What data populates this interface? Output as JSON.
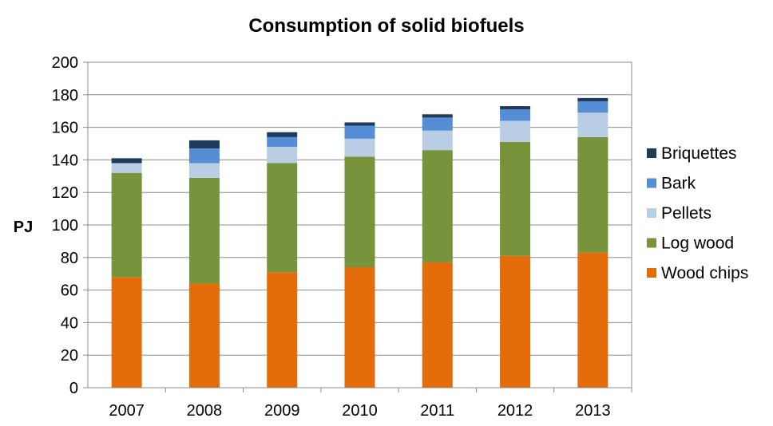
{
  "chart_data": {
    "type": "bar",
    "stacked": true,
    "title": "Consumption of solid biofuels",
    "xlabel": "",
    "ylabel": "PJ",
    "ylim": [
      0,
      200
    ],
    "yticks": [
      0,
      20,
      40,
      60,
      80,
      100,
      120,
      140,
      160,
      180,
      200
    ],
    "grid": true,
    "legend_position": "right",
    "categories": [
      "2007",
      "2008",
      "2009",
      "2010",
      "2011",
      "2012",
      "2013"
    ],
    "series": [
      {
        "name": "Wood chips",
        "color": "#E46C0A",
        "values": [
          68,
          64,
          71,
          74,
          77,
          81,
          83
        ]
      },
      {
        "name": "Log wood",
        "color": "#77933C",
        "values": [
          64,
          65,
          67,
          68,
          69,
          70,
          71
        ]
      },
      {
        "name": "Pellets",
        "color": "#B9CDE5",
        "values": [
          6,
          9,
          10,
          11,
          12,
          13,
          15
        ]
      },
      {
        "name": "Bark",
        "color": "#558ED5",
        "values": [
          0,
          9,
          6,
          8,
          8,
          7,
          7
        ]
      },
      {
        "name": "Briquettes",
        "color": "#1F3B5C",
        "values": [
          3,
          5,
          3,
          2,
          2,
          2,
          2
        ]
      }
    ]
  }
}
